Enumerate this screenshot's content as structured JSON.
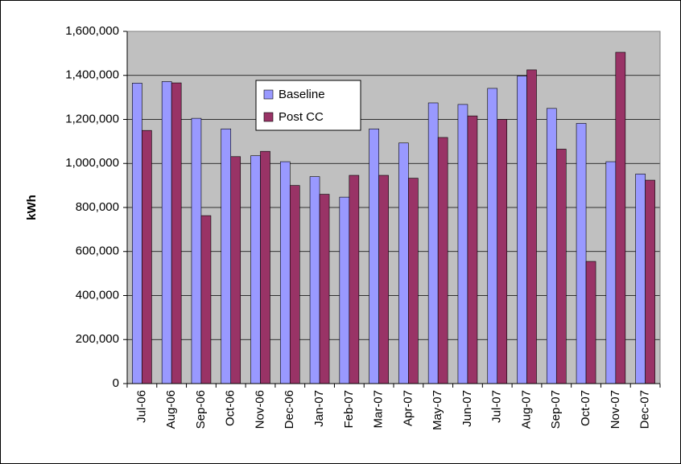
{
  "chart_data": {
    "type": "bar",
    "y_label": "kWh",
    "categories": [
      "Jul-06",
      "Aug-06",
      "Sep-06",
      "Oct-06",
      "Nov-06",
      "Dec-06",
      "Jan-07",
      "Feb-07",
      "Mar-07",
      "Apr-07",
      "May-07",
      "Jun-07",
      "Jul-07",
      "Aug-07",
      "Sep-07",
      "Oct-07",
      "Nov-07",
      "Dec-07"
    ],
    "series": [
      {
        "name": "Baseline",
        "color": "#9999ff",
        "values": [
          1365000,
          1372000,
          1205000,
          1157000,
          1035000,
          1008000,
          940000,
          847000,
          1157000,
          1093000,
          1275000,
          1268000,
          1341000,
          1397000,
          1250000,
          1182000,
          1008000,
          952000
        ]
      },
      {
        "name": "Post CC",
        "color": "#993366",
        "values": [
          1150000,
          1366000,
          763000,
          1031000,
          1055000,
          900000,
          860000,
          946000,
          946000,
          933000,
          1118000,
          1216000,
          1200000,
          1425000,
          1065000,
          555000,
          1505000,
          924000
        ]
      }
    ],
    "ylim": [
      0,
      1600000
    ],
    "yticks": [
      0,
      {
        "value": 200000,
        "label": "200,000"
      },
      {
        "value": 400000,
        "label": "400,000"
      },
      {
        "value": 600000,
        "label": "600,000"
      },
      {
        "value": 800000,
        "label": "800,000"
      },
      {
        "value": 1000000,
        "label": "1,000,000"
      },
      {
        "value": 1200000,
        "label": "1,200,000"
      },
      {
        "value": 1400000,
        "label": "1,400,000"
      },
      {
        "value": 1600000,
        "label": "1,600,000"
      }
    ],
    "grid": true,
    "plot_background": "#c0c0c0"
  }
}
